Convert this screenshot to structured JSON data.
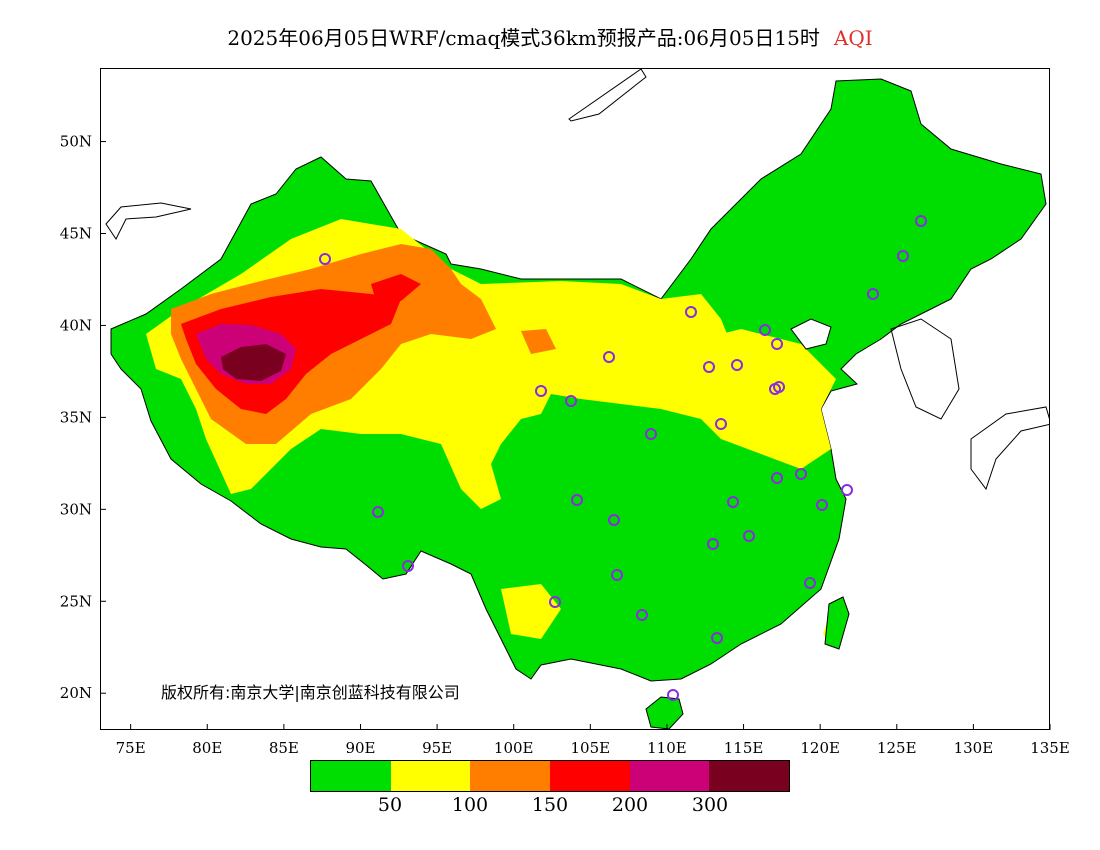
{
  "title": {
    "text": "2025年06月05日WRF/cmaq模式36km预报产品:06月05日15时",
    "variable": "AQI"
  },
  "copyright": "版权所有:南京大学|南京创蓝科技有限公司",
  "axes": {
    "lat_labels": [
      "50N",
      "45N",
      "40N",
      "35N",
      "30N",
      "25N",
      "20N"
    ],
    "lon_labels": [
      "75E",
      "80E",
      "85E",
      "90E",
      "95E",
      "100E",
      "105E",
      "110E",
      "115E",
      "120E",
      "125E",
      "130E",
      "135E"
    ],
    "lat_values": [
      50,
      45,
      40,
      35,
      30,
      25,
      20
    ],
    "lon_values": [
      75,
      80,
      85,
      90,
      95,
      100,
      105,
      110,
      115,
      120,
      125,
      130,
      135
    ]
  },
  "colorbar": {
    "colors": [
      "#00dd00",
      "#ffff00",
      "#ff7e00",
      "#ff0000",
      "#cc0077",
      "#7a0020"
    ],
    "tick_labels": [
      "50",
      "100",
      "150",
      "200",
      "300"
    ]
  },
  "stations_marker_color": "#8a2be2",
  "country_outline_color": "#000000"
}
